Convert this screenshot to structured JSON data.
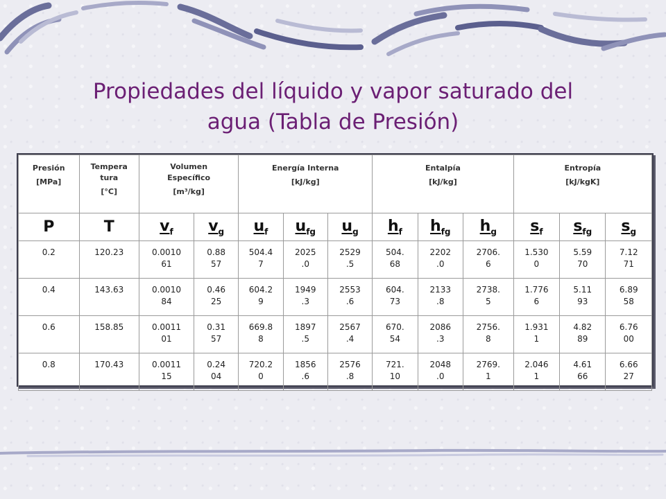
{
  "title_line1": "Propiedades del líquido y vapor saturado del",
  "title_line2": "agua (Tabla de Presión)",
  "group_headers": [
    {
      "l1": "Presión",
      "l2": "[MPa]"
    },
    {
      "l1": "Tempera",
      "l2": "tura",
      "l3": "[°C]"
    },
    {
      "l1": "Volumen",
      "l2": "Específico",
      "l3": "[m³/kg]"
    },
    {
      "l1": "Energía Interna",
      "l2": "[kJ/kg]"
    },
    {
      "l1": "Entalpía",
      "l2": "[kJ/kg]"
    },
    {
      "l1": "Entropía",
      "l2": "[kJ/kgK]"
    }
  ],
  "symbols": [
    {
      "base": "P",
      "sub": ""
    },
    {
      "base": "T",
      "sub": ""
    },
    {
      "base": "v",
      "sub": "f"
    },
    {
      "base": "v",
      "sub": "g"
    },
    {
      "base": "u",
      "sub": "f"
    },
    {
      "base": "u",
      "sub": "fg"
    },
    {
      "base": "u",
      "sub": "g"
    },
    {
      "base": "h",
      "sub": "f"
    },
    {
      "base": "h",
      "sub": "fg"
    },
    {
      "base": "h",
      "sub": "g"
    },
    {
      "base": "s",
      "sub": "f"
    },
    {
      "base": "s",
      "sub": "fg"
    },
    {
      "base": "s",
      "sub": "g"
    }
  ],
  "rows": [
    [
      [
        "0.2"
      ],
      [
        "120.23"
      ],
      [
        "0.0010",
        "61"
      ],
      [
        "0.88",
        "57"
      ],
      [
        "504.4",
        "7"
      ],
      [
        "2025",
        ".0"
      ],
      [
        "2529",
        ".5"
      ],
      [
        "504.",
        "68"
      ],
      [
        "2202",
        ".0"
      ],
      [
        "2706.",
        "6"
      ],
      [
        "1.530",
        "0"
      ],
      [
        "5.59",
        "70"
      ],
      [
        "7.12",
        "71"
      ]
    ],
    [
      [
        "0.4"
      ],
      [
        "143.63"
      ],
      [
        "0.0010",
        "84"
      ],
      [
        "0.46",
        "25"
      ],
      [
        "604.2",
        "9"
      ],
      [
        "1949",
        ".3"
      ],
      [
        "2553",
        ".6"
      ],
      [
        "604.",
        "73"
      ],
      [
        "2133",
        ".8"
      ],
      [
        "2738.",
        "5"
      ],
      [
        "1.776",
        "6"
      ],
      [
        "5.11",
        "93"
      ],
      [
        "6.89",
        "58"
      ]
    ],
    [
      [
        "0.6"
      ],
      [
        "158.85"
      ],
      [
        "0.0011",
        "01"
      ],
      [
        "0.31",
        "57"
      ],
      [
        "669.8",
        "8"
      ],
      [
        "1897",
        ".5"
      ],
      [
        "2567",
        ".4"
      ],
      [
        "670.",
        "54"
      ],
      [
        "2086",
        ".3"
      ],
      [
        "2756.",
        "8"
      ],
      [
        "1.931",
        "1"
      ],
      [
        "4.82",
        "89"
      ],
      [
        "6.76",
        "00"
      ]
    ],
    [
      [
        "0.8"
      ],
      [
        "170.43"
      ],
      [
        "0.0011",
        "15"
      ],
      [
        "0.24",
        "04"
      ],
      [
        "720.2",
        "0"
      ],
      [
        "1856",
        ".6"
      ],
      [
        "2576",
        ".8"
      ],
      [
        "721.",
        "10"
      ],
      [
        "2048",
        ".0"
      ],
      [
        "2769.",
        "1"
      ],
      [
        "2.046",
        "1"
      ],
      [
        "4.61",
        "66"
      ],
      [
        "6.66",
        "27"
      ]
    ]
  ],
  "colors": {
    "title": "#6b1f74",
    "brush_dark": "#5b5f8e",
    "brush_light": "#a7a9c8"
  }
}
